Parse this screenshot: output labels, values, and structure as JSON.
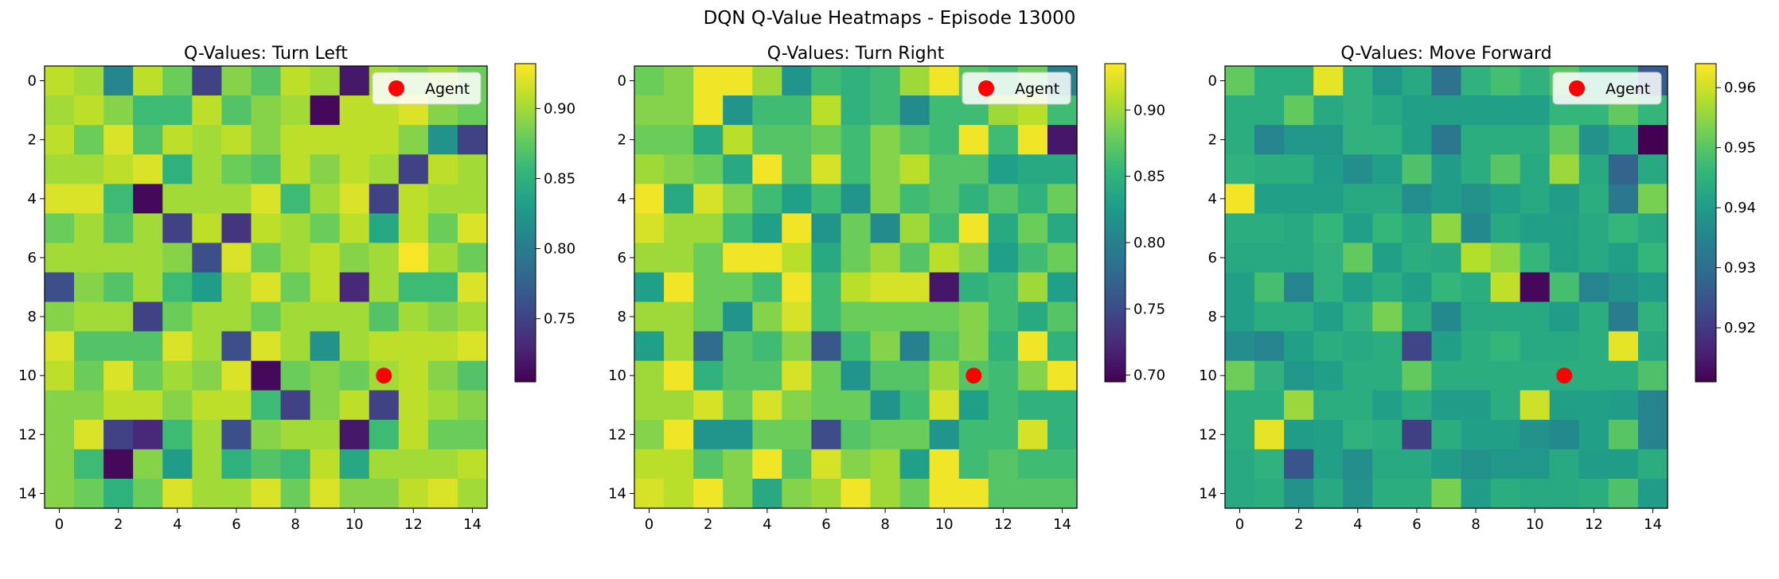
{
  "suptitle": "DQN Q-Value Heatmaps - Episode 13000",
  "colormap": [
    "#440154",
    "#482878",
    "#3e4989",
    "#31688e",
    "#26828e",
    "#1f9e89",
    "#35b779",
    "#6ece58",
    "#b5de2b",
    "#fde725"
  ],
  "agent_color": "#ff0000",
  "chart_data": [
    {
      "type": "heatmap",
      "title": "Q-Values: Turn Left",
      "grid_size": 15,
      "x_ticks": [
        "0",
        "2",
        "4",
        "6",
        "8",
        "10",
        "12",
        "14"
      ],
      "y_ticks": [
        "0",
        "2",
        "4",
        "6",
        "8",
        "10",
        "12",
        "14"
      ],
      "colorbar": {
        "min": 0.705,
        "max": 0.932,
        "ticks": [
          "0.75",
          "0.80",
          "0.85",
          "0.90"
        ]
      },
      "legend": {
        "label": "Agent",
        "position": "upper right"
      },
      "agent": {
        "x": 11,
        "y": 10
      },
      "values": [
        [
          0.91,
          0.9,
          0.81,
          0.91,
          0.88,
          0.75,
          0.89,
          0.87,
          0.91,
          0.9,
          0.72,
          0.9,
          0.89,
          0.9,
          0.88
        ],
        [
          0.9,
          0.91,
          0.89,
          0.86,
          0.86,
          0.91,
          0.87,
          0.89,
          0.9,
          0.71,
          0.91,
          0.91,
          0.92,
          0.89,
          0.88
        ],
        [
          0.91,
          0.88,
          0.92,
          0.87,
          0.91,
          0.9,
          0.91,
          0.89,
          0.91,
          0.91,
          0.91,
          0.91,
          0.89,
          0.82,
          0.75
        ],
        [
          0.9,
          0.9,
          0.91,
          0.92,
          0.85,
          0.9,
          0.88,
          0.87,
          0.91,
          0.89,
          0.91,
          0.9,
          0.75,
          0.91,
          0.9
        ],
        [
          0.92,
          0.92,
          0.86,
          0.71,
          0.9,
          0.9,
          0.9,
          0.92,
          0.86,
          0.9,
          0.92,
          0.75,
          0.91,
          0.9,
          0.9
        ],
        [
          0.88,
          0.9,
          0.87,
          0.9,
          0.75,
          0.91,
          0.74,
          0.91,
          0.9,
          0.88,
          0.91,
          0.84,
          0.91,
          0.88,
          0.92
        ],
        [
          0.9,
          0.9,
          0.9,
          0.9,
          0.89,
          0.76,
          0.92,
          0.88,
          0.9,
          0.91,
          0.89,
          0.9,
          0.93,
          0.9,
          0.88
        ],
        [
          0.76,
          0.89,
          0.87,
          0.9,
          0.86,
          0.83,
          0.9,
          0.92,
          0.88,
          0.91,
          0.73,
          0.9,
          0.86,
          0.86,
          0.92
        ],
        [
          0.89,
          0.9,
          0.9,
          0.75,
          0.88,
          0.9,
          0.9,
          0.88,
          0.9,
          0.9,
          0.9,
          0.87,
          0.9,
          0.89,
          0.9
        ],
        [
          0.92,
          0.87,
          0.87,
          0.87,
          0.92,
          0.9,
          0.76,
          0.92,
          0.9,
          0.82,
          0.9,
          0.91,
          0.91,
          0.91,
          0.92
        ],
        [
          0.91,
          0.88,
          0.92,
          0.88,
          0.9,
          0.89,
          0.92,
          0.71,
          0.88,
          0.89,
          0.88,
          0.9,
          0.91,
          0.89,
          0.87
        ],
        [
          0.89,
          0.89,
          0.91,
          0.91,
          0.89,
          0.91,
          0.91,
          0.86,
          0.75,
          0.89,
          0.91,
          0.75,
          0.91,
          0.9,
          0.89
        ],
        [
          0.89,
          0.92,
          0.75,
          0.73,
          0.86,
          0.9,
          0.76,
          0.89,
          0.9,
          0.9,
          0.72,
          0.86,
          0.91,
          0.88,
          0.88
        ],
        [
          0.89,
          0.86,
          0.71,
          0.89,
          0.83,
          0.9,
          0.85,
          0.87,
          0.86,
          0.91,
          0.84,
          0.9,
          0.9,
          0.9,
          0.91
        ],
        [
          0.89,
          0.88,
          0.85,
          0.88,
          0.92,
          0.9,
          0.9,
          0.92,
          0.88,
          0.92,
          0.89,
          0.89,
          0.91,
          0.92,
          0.9
        ]
      ]
    },
    {
      "type": "heatmap",
      "title": "Q-Values: Turn Right",
      "grid_size": 15,
      "x_ticks": [
        "0",
        "2",
        "4",
        "6",
        "8",
        "10",
        "12",
        "14"
      ],
      "y_ticks": [
        "0",
        "2",
        "4",
        "6",
        "8",
        "10",
        "12",
        "14"
      ],
      "colorbar": {
        "min": 0.695,
        "max": 0.935,
        "ticks": [
          "0.70",
          "0.75",
          "0.80",
          "0.85",
          "0.90"
        ]
      },
      "legend": {
        "label": "Agent",
        "position": "upper right"
      },
      "agent": {
        "x": 11,
        "y": 10
      },
      "values": [
        [
          0.88,
          0.89,
          0.93,
          0.93,
          0.9,
          0.82,
          0.86,
          0.85,
          0.86,
          0.9,
          0.93,
          0.87,
          0.86,
          0.88,
          0.8
        ],
        [
          0.89,
          0.89,
          0.93,
          0.82,
          0.86,
          0.86,
          0.91,
          0.85,
          0.86,
          0.81,
          0.86,
          0.86,
          0.9,
          0.91,
          0.86
        ],
        [
          0.88,
          0.88,
          0.84,
          0.91,
          0.87,
          0.87,
          0.88,
          0.86,
          0.89,
          0.87,
          0.86,
          0.93,
          0.86,
          0.93,
          0.71
        ],
        [
          0.9,
          0.89,
          0.88,
          0.84,
          0.93,
          0.87,
          0.92,
          0.86,
          0.89,
          0.91,
          0.87,
          0.87,
          0.83,
          0.84,
          0.84
        ],
        [
          0.93,
          0.84,
          0.92,
          0.89,
          0.86,
          0.83,
          0.86,
          0.82,
          0.89,
          0.86,
          0.87,
          0.85,
          0.87,
          0.85,
          0.88
        ],
        [
          0.92,
          0.9,
          0.9,
          0.86,
          0.83,
          0.93,
          0.82,
          0.88,
          0.81,
          0.9,
          0.86,
          0.93,
          0.84,
          0.88,
          0.84
        ],
        [
          0.9,
          0.9,
          0.88,
          0.93,
          0.93,
          0.91,
          0.84,
          0.88,
          0.9,
          0.87,
          0.91,
          0.89,
          0.83,
          0.86,
          0.88
        ],
        [
          0.83,
          0.93,
          0.88,
          0.88,
          0.86,
          0.93,
          0.86,
          0.91,
          0.92,
          0.92,
          0.71,
          0.85,
          0.86,
          0.9,
          0.83
        ],
        [
          0.9,
          0.9,
          0.88,
          0.82,
          0.89,
          0.92,
          0.86,
          0.88,
          0.88,
          0.88,
          0.88,
          0.89,
          0.86,
          0.84,
          0.87
        ],
        [
          0.83,
          0.9,
          0.78,
          0.87,
          0.86,
          0.89,
          0.76,
          0.86,
          0.89,
          0.8,
          0.87,
          0.89,
          0.85,
          0.93,
          0.85
        ],
        [
          0.9,
          0.93,
          0.85,
          0.87,
          0.87,
          0.92,
          0.88,
          0.82,
          0.87,
          0.87,
          0.9,
          0.87,
          0.86,
          0.89,
          0.93
        ],
        [
          0.9,
          0.9,
          0.92,
          0.88,
          0.92,
          0.89,
          0.88,
          0.88,
          0.82,
          0.86,
          0.92,
          0.83,
          0.86,
          0.85,
          0.85
        ],
        [
          0.89,
          0.93,
          0.82,
          0.82,
          0.88,
          0.88,
          0.75,
          0.87,
          0.88,
          0.88,
          0.82,
          0.86,
          0.86,
          0.92,
          0.85
        ],
        [
          0.91,
          0.91,
          0.87,
          0.89,
          0.93,
          0.87,
          0.92,
          0.89,
          0.9,
          0.83,
          0.93,
          0.86,
          0.87,
          0.86,
          0.86
        ],
        [
          0.92,
          0.91,
          0.93,
          0.89,
          0.84,
          0.89,
          0.9,
          0.93,
          0.9,
          0.88,
          0.93,
          0.93,
          0.87,
          0.87,
          0.87
        ]
      ]
    },
    {
      "type": "heatmap",
      "title": "Q-Values: Move Forward",
      "grid_size": 15,
      "x_ticks": [
        "0",
        "2",
        "4",
        "6",
        "8",
        "10",
        "12",
        "14"
      ],
      "y_ticks": [
        "0",
        "2",
        "4",
        "6",
        "8",
        "10",
        "12",
        "14"
      ],
      "colorbar": {
        "min": 0.911,
        "max": 0.964,
        "ticks": [
          "0.92",
          "0.93",
          "0.94",
          "0.95",
          "0.96"
        ]
      },
      "legend": {
        "label": "Agent",
        "position": "upper right"
      },
      "agent": {
        "x": 11,
        "y": 10
      },
      "values": [
        [
          0.951,
          0.944,
          0.944,
          0.962,
          0.945,
          0.939,
          0.943,
          0.931,
          0.945,
          0.948,
          0.945,
          0.95,
          0.945,
          0.945,
          0.926
        ],
        [
          0.944,
          0.944,
          0.951,
          0.943,
          0.945,
          0.943,
          0.941,
          0.941,
          0.941,
          0.941,
          0.941,
          0.946,
          0.946,
          0.951,
          0.946
        ],
        [
          0.944,
          0.935,
          0.939,
          0.939,
          0.945,
          0.945,
          0.941,
          0.932,
          0.944,
          0.944,
          0.944,
          0.951,
          0.938,
          0.943,
          0.911
        ],
        [
          0.945,
          0.944,
          0.944,
          0.94,
          0.937,
          0.941,
          0.949,
          0.94,
          0.944,
          0.95,
          0.943,
          0.956,
          0.943,
          0.928,
          0.943
        ],
        [
          0.963,
          0.941,
          0.941,
          0.941,
          0.943,
          0.943,
          0.937,
          0.94,
          0.938,
          0.941,
          0.943,
          0.94,
          0.944,
          0.932,
          0.953
        ],
        [
          0.944,
          0.944,
          0.943,
          0.946,
          0.941,
          0.946,
          0.943,
          0.955,
          0.936,
          0.943,
          0.941,
          0.941,
          0.943,
          0.946,
          0.943
        ],
        [
          0.943,
          0.943,
          0.943,
          0.945,
          0.951,
          0.941,
          0.944,
          0.943,
          0.958,
          0.955,
          0.946,
          0.941,
          0.943,
          0.941,
          0.946
        ],
        [
          0.941,
          0.948,
          0.935,
          0.945,
          0.941,
          0.944,
          0.941,
          0.946,
          0.944,
          0.959,
          0.912,
          0.948,
          0.935,
          0.938,
          0.94
        ],
        [
          0.941,
          0.944,
          0.944,
          0.941,
          0.945,
          0.953,
          0.944,
          0.936,
          0.943,
          0.943,
          0.943,
          0.94,
          0.944,
          0.933,
          0.945
        ],
        [
          0.937,
          0.935,
          0.941,
          0.944,
          0.943,
          0.944,
          0.922,
          0.941,
          0.944,
          0.946,
          0.943,
          0.943,
          0.944,
          0.962,
          0.943
        ],
        [
          0.952,
          0.945,
          0.939,
          0.941,
          0.944,
          0.944,
          0.951,
          0.944,
          0.944,
          0.944,
          0.944,
          0.944,
          0.944,
          0.944,
          0.949
        ],
        [
          0.944,
          0.944,
          0.956,
          0.944,
          0.944,
          0.941,
          0.944,
          0.94,
          0.94,
          0.944,
          0.96,
          0.941,
          0.941,
          0.94,
          0.935
        ],
        [
          0.944,
          0.962,
          0.94,
          0.941,
          0.945,
          0.944,
          0.921,
          0.944,
          0.941,
          0.941,
          0.938,
          0.936,
          0.941,
          0.95,
          0.935
        ],
        [
          0.943,
          0.945,
          0.925,
          0.941,
          0.937,
          0.943,
          0.943,
          0.94,
          0.938,
          0.939,
          0.939,
          0.943,
          0.94,
          0.94,
          0.944
        ],
        [
          0.943,
          0.944,
          0.938,
          0.943,
          0.938,
          0.944,
          0.944,
          0.953,
          0.94,
          0.944,
          0.943,
          0.943,
          0.944,
          0.949,
          0.94
        ]
      ]
    }
  ]
}
